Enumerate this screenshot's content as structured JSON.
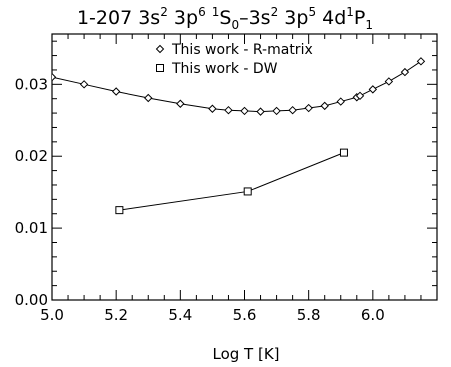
{
  "chart_data": {
    "type": "line",
    "title": {
      "prefix": "1-207 3s",
      "parts": [
        {
          "text": "1-207 3s",
          "sup": "2"
        },
        {
          "text": " 3p",
          "sup": "6"
        },
        {
          "text": " ",
          "sup": "1"
        },
        {
          "text": "S",
          "sub": "0"
        },
        {
          "text": "–3s",
          "sup": "2"
        },
        {
          "text": " 3p",
          "sup": "5"
        },
        {
          "text": " 4d",
          "sup": "1"
        },
        {
          "text": "P",
          "sub": "1"
        }
      ]
    },
    "xlabel": "Log T [K]",
    "ylabel": "",
    "xlim": [
      5.0,
      6.2
    ],
    "ylim": [
      0.0,
      0.037
    ],
    "xticks": [
      5.0,
      5.2,
      5.4,
      5.6,
      5.8,
      6.0
    ],
    "xtick_labels": [
      "5.0",
      "5.2",
      "5.4",
      "5.6",
      "5.8",
      "6.0"
    ],
    "yticks": [
      0.0,
      0.01,
      0.02,
      0.03
    ],
    "ytick_labels": [
      "0.00",
      "0.01",
      "0.02",
      "0.03"
    ],
    "grid": false,
    "legend_position": "top-center",
    "series": [
      {
        "name": "This work - R-matrix",
        "marker": "diamond",
        "x": [
          5.0,
          5.1,
          5.2,
          5.3,
          5.4,
          5.5,
          5.55,
          5.6,
          5.65,
          5.7,
          5.75,
          5.8,
          5.85,
          5.9,
          5.95,
          5.96,
          6.0,
          6.05,
          6.1,
          6.15
        ],
        "y": [
          0.031,
          0.03,
          0.029,
          0.0281,
          0.0273,
          0.0266,
          0.0264,
          0.0263,
          0.0262,
          0.0263,
          0.0264,
          0.0267,
          0.027,
          0.0276,
          0.0282,
          0.0284,
          0.0293,
          0.0304,
          0.0317,
          0.0332
        ]
      },
      {
        "name": "This work - DW",
        "marker": "square",
        "x": [
          5.21,
          5.61,
          5.91
        ],
        "y": [
          0.0125,
          0.0151,
          0.0205
        ]
      }
    ]
  }
}
